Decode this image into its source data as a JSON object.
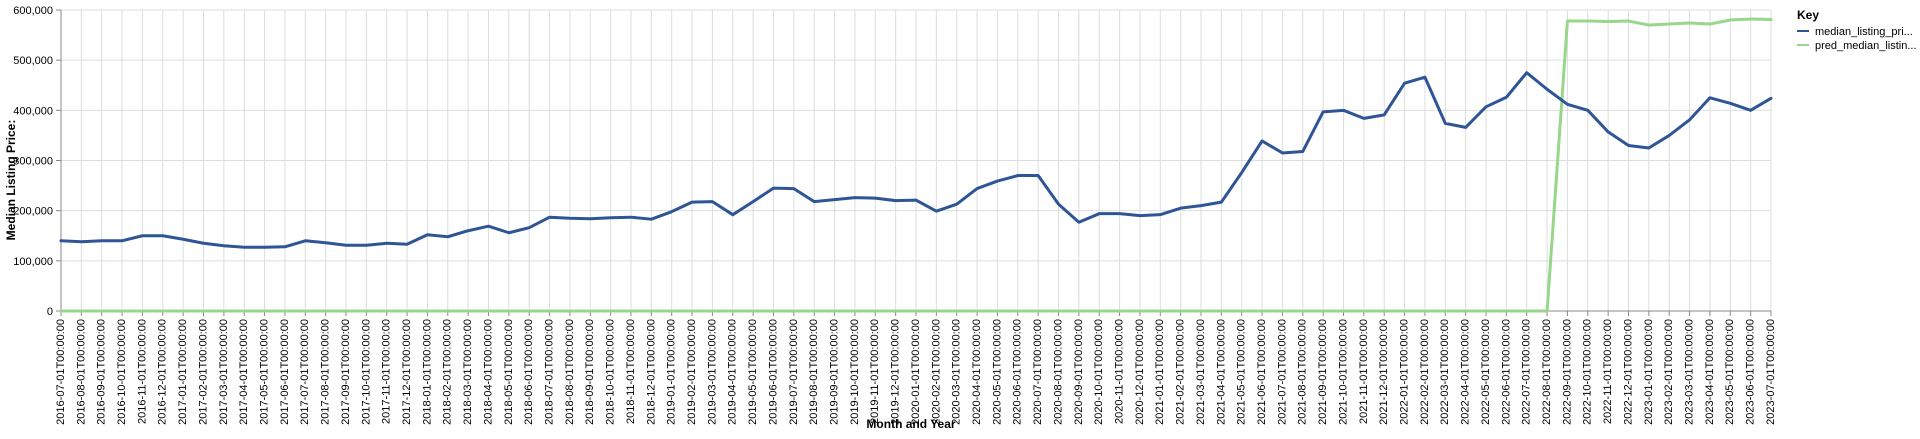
{
  "chart_data": {
    "type": "line",
    "xlabel": "Month and Year",
    "ylabel": "Median Listing Price:",
    "ylim": [
      0,
      600000
    ],
    "yticks": [
      0,
      100000,
      200000,
      300000,
      400000,
      500000,
      600000
    ],
    "ytick_labels": [
      "0",
      "100,000",
      "200,000",
      "300,000",
      "400,000",
      "500,000",
      "600,000"
    ],
    "grid": true,
    "legend": {
      "title": "Key",
      "placement": "top-right"
    },
    "x": [
      "2016-07-01T00:00:00",
      "2016-08-01T00:00:00",
      "2016-09-01T00:00:00",
      "2016-10-01T00:00:00",
      "2016-11-01T00:00:00",
      "2016-12-01T00:00:00",
      "2017-01-01T00:00:00",
      "2017-02-01T00:00:00",
      "2017-03-01T00:00:00",
      "2017-04-01T00:00:00",
      "2017-05-01T00:00:00",
      "2017-06-01T00:00:00",
      "2017-07-01T00:00:00",
      "2017-08-01T00:00:00",
      "2017-09-01T00:00:00",
      "2017-10-01T00:00:00",
      "2017-11-01T00:00:00",
      "2017-12-01T00:00:00",
      "2018-01-01T00:00:00",
      "2018-02-01T00:00:00",
      "2018-03-01T00:00:00",
      "2018-04-01T00:00:00",
      "2018-05-01T00:00:00",
      "2018-06-01T00:00:00",
      "2018-07-01T00:00:00",
      "2018-08-01T00:00:00",
      "2018-09-01T00:00:00",
      "2018-10-01T00:00:00",
      "2018-11-01T00:00:00",
      "2018-12-01T00:00:00",
      "2019-01-01T00:00:00",
      "2019-02-01T00:00:00",
      "2019-03-01T00:00:00",
      "2019-04-01T00:00:00",
      "2019-05-01T00:00:00",
      "2019-06-01T00:00:00",
      "2019-07-01T00:00:00",
      "2019-08-01T00:00:00",
      "2019-09-01T00:00:00",
      "2019-10-01T00:00:00",
      "2019-11-01T00:00:00",
      "2019-12-01T00:00:00",
      "2020-01-01T00:00:00",
      "2020-02-01T00:00:00",
      "2020-03-01T00:00:00",
      "2020-04-01T00:00:00",
      "2020-05-01T00:00:00",
      "2020-06-01T00:00:00",
      "2020-07-01T00:00:00",
      "2020-08-01T00:00:00",
      "2020-09-01T00:00:00",
      "2020-10-01T00:00:00",
      "2020-11-01T00:00:00",
      "2020-12-01T00:00:00",
      "2021-01-01T00:00:00",
      "2021-02-01T00:00:00",
      "2021-03-01T00:00:00",
      "2021-04-01T00:00:00",
      "2021-05-01T00:00:00",
      "2021-06-01T00:00:00",
      "2021-07-01T00:00:00",
      "2021-08-01T00:00:00",
      "2021-09-01T00:00:00",
      "2021-10-01T00:00:00",
      "2021-11-01T00:00:00",
      "2021-12-01T00:00:00",
      "2022-01-01T00:00:00",
      "2022-02-01T00:00:00",
      "2022-03-01T00:00:00",
      "2022-04-01T00:00:00",
      "2022-05-01T00:00:00",
      "2022-06-01T00:00:00",
      "2022-07-01T00:00:00",
      "2022-08-01T00:00:00",
      "2022-09-01T00:00:00",
      "2022-10-01T00:00:00",
      "2022-11-01T00:00:00",
      "2022-12-01T00:00:00",
      "2023-01-01T00:00:00",
      "2023-02-01T00:00:00",
      "2023-03-01T00:00:00",
      "2023-04-01T00:00:00",
      "2023-05-01T00:00:00",
      "2023-06-01T00:00:00",
      "2023-07-01T00:00:00"
    ],
    "series": [
      {
        "name": "median_listing_pri...",
        "color": "#2f5597",
        "values": [
          140000,
          138000,
          140000,
          140000,
          150000,
          150000,
          143000,
          135000,
          130000,
          127000,
          127000,
          128000,
          140000,
          136000,
          131000,
          131000,
          135000,
          133000,
          152000,
          148000,
          160000,
          169000,
          156000,
          166000,
          187000,
          185000,
          184000,
          186000,
          187000,
          183000,
          198000,
          217000,
          218000,
          192000,
          218000,
          245000,
          244000,
          218000,
          222000,
          226000,
          225000,
          220000,
          221000,
          199000,
          213000,
          244000,
          259000,
          270000,
          270000,
          213000,
          177000,
          194000,
          194000,
          190000,
          192000,
          205000,
          210000,
          217000,
          276000,
          339000,
          315000,
          318000,
          397000,
          400000,
          384000,
          391000,
          454000,
          466000,
          374000,
          366000,
          407000,
          426000,
          475000,
          442000,
          412000,
          400000,
          357000,
          330000,
          325000,
          350000,
          381000,
          425000,
          414000,
          400000,
          424000
        ]
      },
      {
        "name": "pred_median_listin...",
        "color": "#98d68b",
        "values": [
          0,
          0,
          0,
          0,
          0,
          0,
          0,
          0,
          0,
          0,
          0,
          0,
          0,
          0,
          0,
          0,
          0,
          0,
          0,
          0,
          0,
          0,
          0,
          0,
          0,
          0,
          0,
          0,
          0,
          0,
          0,
          0,
          0,
          0,
          0,
          0,
          0,
          0,
          0,
          0,
          0,
          0,
          0,
          0,
          0,
          0,
          0,
          0,
          0,
          0,
          0,
          0,
          0,
          0,
          0,
          0,
          0,
          0,
          0,
          0,
          0,
          0,
          0,
          0,
          0,
          0,
          0,
          0,
          0,
          0,
          0,
          0,
          0,
          0,
          578000,
          578000,
          577000,
          578000,
          570000,
          572000,
          574000,
          572000,
          580000,
          582000,
          581000
        ]
      }
    ]
  }
}
